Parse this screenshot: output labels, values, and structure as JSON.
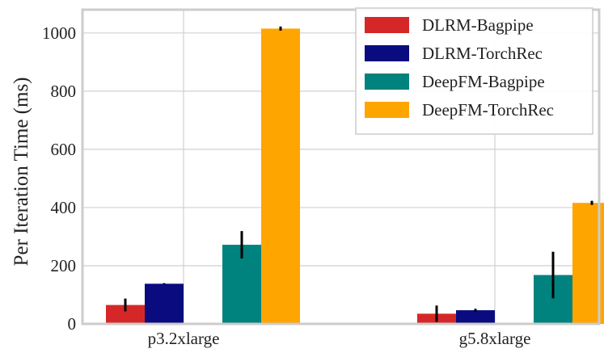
{
  "chart_data": {
    "type": "bar",
    "title": "",
    "xlabel": "",
    "ylabel": "Per Iteration Time (ms)",
    "categories": [
      "p3.2xlarge",
      "g5.8xlarge"
    ],
    "ylim": [
      0,
      1080
    ],
    "yticks": [
      0,
      200,
      400,
      600,
      800,
      1000
    ],
    "grid": true,
    "legend_position": "top-right",
    "series": [
      {
        "name": "DLRM-Bagpipe",
        "color": "#d62728",
        "values": [
          65,
          35
        ],
        "errors": [
          22,
          28
        ]
      },
      {
        "name": "DLRM-TorchRec",
        "color": "#0b0b80",
        "values": [
          138,
          47
        ],
        "errors": [
          2,
          5
        ]
      },
      {
        "name": "DeepFM-Bagpipe",
        "color": "#00827f",
        "values": [
          272,
          168
        ],
        "errors": [
          47,
          80
        ]
      },
      {
        "name": "DeepFM-TorchRec",
        "color": "#ffa500",
        "values": [
          1015,
          416
        ],
        "errors": [
          7,
          7
        ]
      }
    ]
  }
}
